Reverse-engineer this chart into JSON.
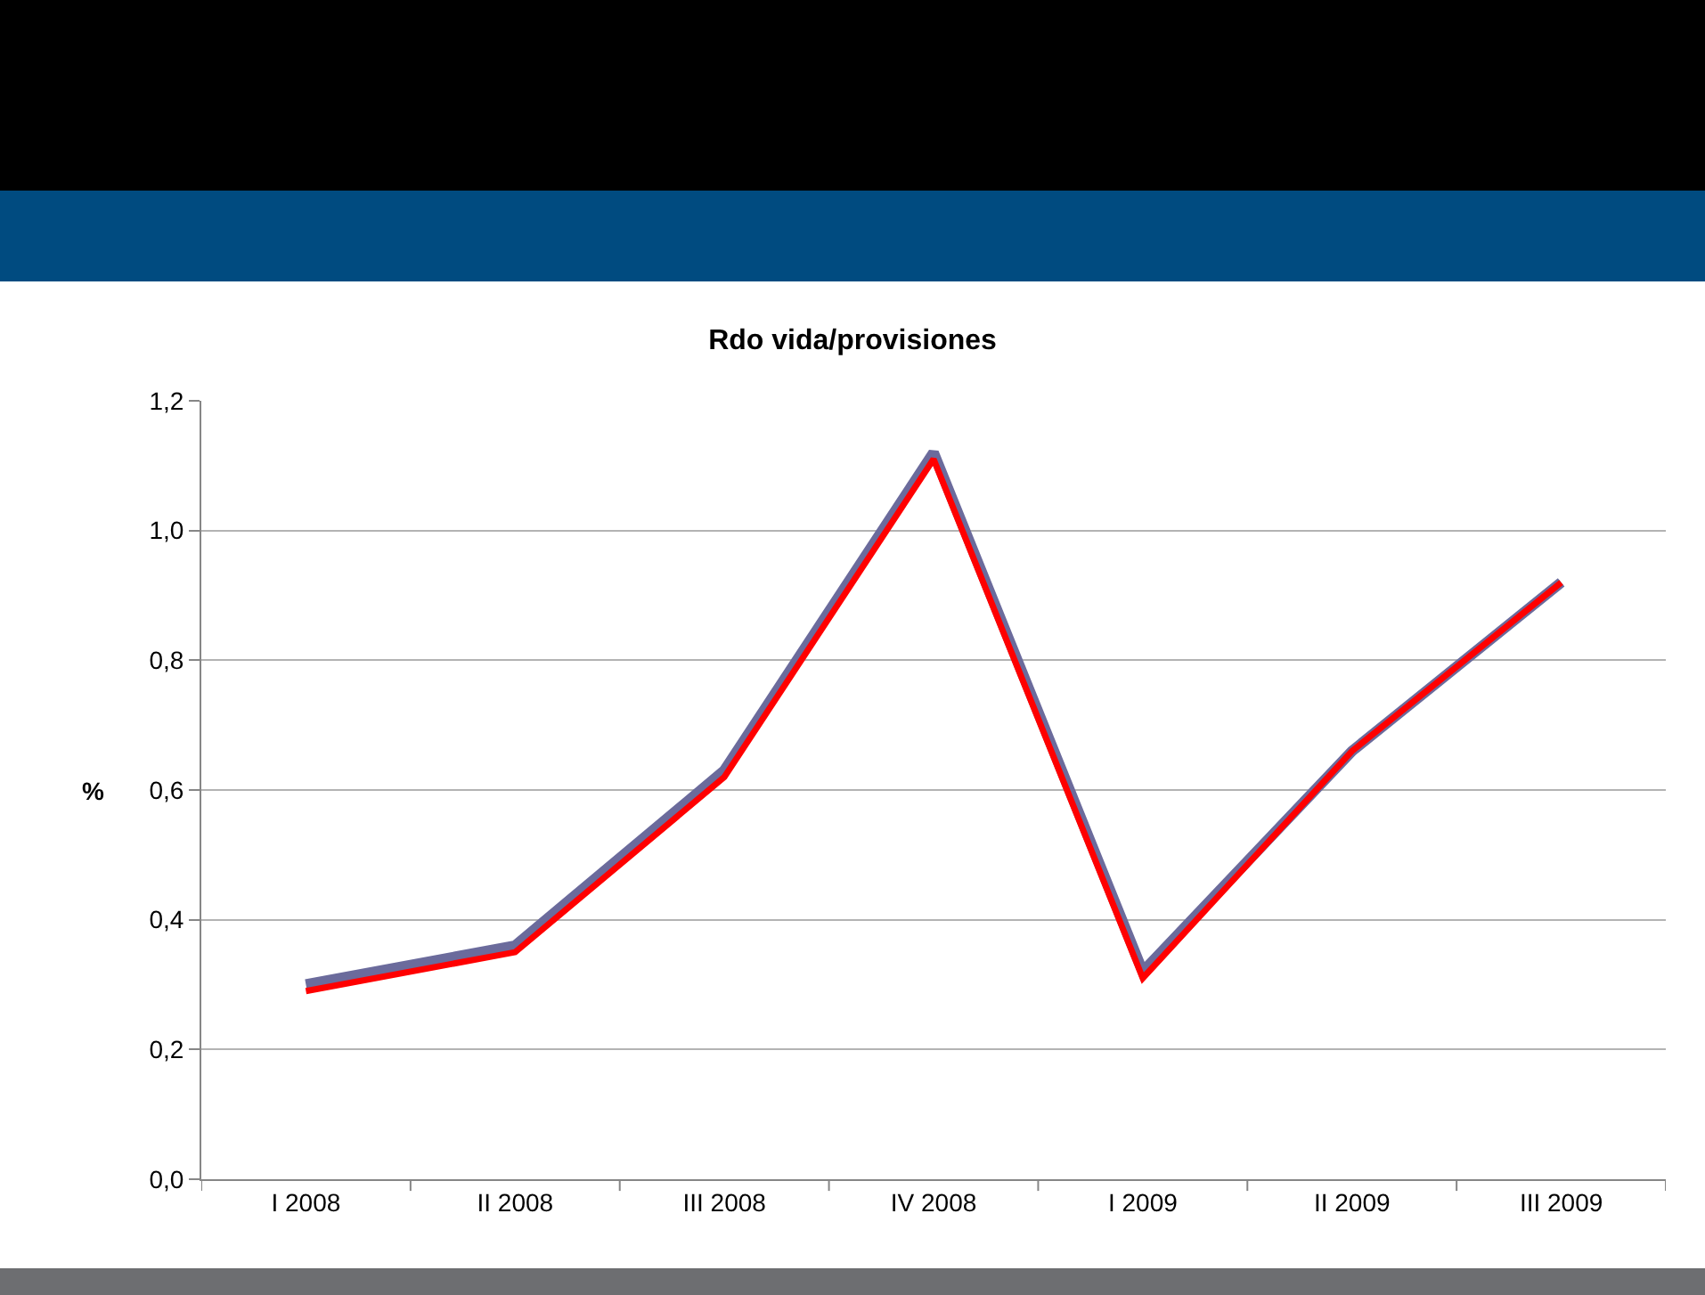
{
  "chart_data": {
    "type": "line",
    "title": "Rdo vida/provisiones",
    "ylabel": "%",
    "categories": [
      "I 2008",
      "II 2008",
      "III 2008",
      "IV 2008",
      "I 2009",
      "II 2009",
      "III 2009"
    ],
    "series": [
      {
        "color": "#6b6b9c",
        "values": [
          0.3,
          0.36,
          0.63,
          1.12,
          0.32,
          0.66,
          0.92
        ]
      },
      {
        "color": "#ff0000",
        "values": [
          0.29,
          0.35,
          0.62,
          1.11,
          0.31,
          0.66,
          0.92
        ]
      }
    ],
    "ylim": [
      0,
      1.2
    ],
    "yticks": [
      {
        "value": 0,
        "label": "0,0"
      },
      {
        "value": 0.2,
        "label": "0,2"
      },
      {
        "value": 0.4,
        "label": "0,4"
      },
      {
        "value": 0.6,
        "label": "0,6"
      },
      {
        "value": 0.8,
        "label": "0,8"
      },
      {
        "value": 1.0,
        "label": "1,0"
      },
      {
        "value": 1.2,
        "label": "1,2"
      }
    ],
    "grid": "y",
    "marker": "none",
    "line_style": "solid"
  }
}
